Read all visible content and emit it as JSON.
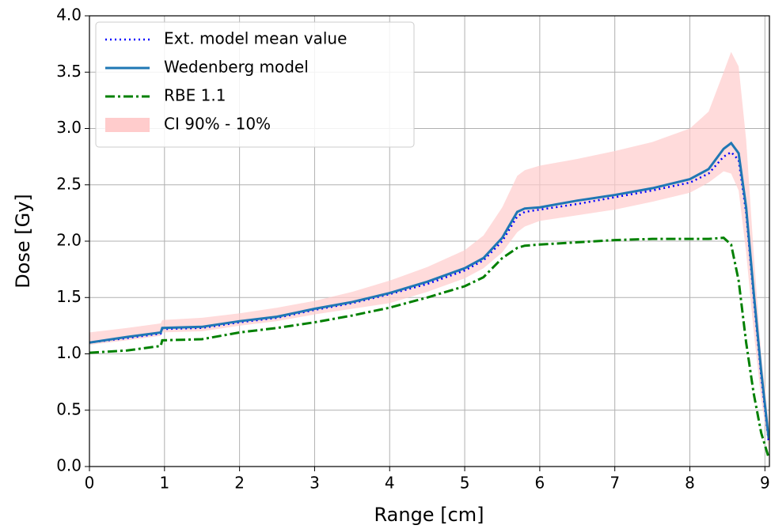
{
  "chart_data": {
    "type": "line",
    "xlabel": "Range [cm]",
    "ylabel": "Dose [Gy]",
    "x": [
      0,
      0.5,
      0.95,
      0.97,
      1.5,
      2,
      2.5,
      3,
      3.5,
      4,
      4.5,
      5,
      5.25,
      5.5,
      5.7,
      5.8,
      6,
      6.5,
      7,
      7.5,
      8,
      8.25,
      8.45,
      8.55,
      8.65,
      8.75,
      8.85,
      8.95,
      9.05
    ],
    "series": [
      {
        "name": "Ext. model mean value",
        "color": "#0000ff",
        "style": "dotted",
        "values": [
          1.1,
          1.14,
          1.18,
          1.22,
          1.23,
          1.28,
          1.32,
          1.39,
          1.45,
          1.53,
          1.62,
          1.74,
          1.83,
          2.0,
          2.22,
          2.26,
          2.28,
          2.33,
          2.39,
          2.45,
          2.52,
          2.6,
          2.75,
          2.79,
          2.72,
          2.25,
          1.5,
          0.8,
          0.22
        ]
      },
      {
        "name": "Wedenberg model",
        "color": "#1f77b4",
        "style": "solid",
        "values": [
          1.1,
          1.15,
          1.19,
          1.23,
          1.24,
          1.29,
          1.33,
          1.4,
          1.46,
          1.54,
          1.64,
          1.76,
          1.85,
          2.03,
          2.26,
          2.29,
          2.3,
          2.36,
          2.41,
          2.47,
          2.55,
          2.64,
          2.82,
          2.87,
          2.78,
          2.3,
          1.55,
          0.85,
          0.25
        ]
      },
      {
        "name": "RBE 1.1",
        "color": "#008000",
        "style": "dashdot",
        "values": [
          1.01,
          1.03,
          1.07,
          1.12,
          1.13,
          1.19,
          1.23,
          1.28,
          1.34,
          1.41,
          1.5,
          1.6,
          1.68,
          1.85,
          1.94,
          1.96,
          1.97,
          1.99,
          2.01,
          2.02,
          2.02,
          2.02,
          2.03,
          1.97,
          1.65,
          1.1,
          0.65,
          0.3,
          0.08
        ]
      },
      {
        "name": "CI 90% - 10%",
        "color": "#ffcccc",
        "style": "band",
        "upper": [
          1.19,
          1.23,
          1.27,
          1.3,
          1.32,
          1.36,
          1.41,
          1.47,
          1.55,
          1.65,
          1.77,
          1.92,
          2.05,
          2.3,
          2.58,
          2.63,
          2.67,
          2.73,
          2.8,
          2.88,
          3.0,
          3.15,
          3.5,
          3.68,
          3.55,
          2.9,
          1.9,
          1.0,
          0.4
        ],
        "lower": [
          1.08,
          1.12,
          1.16,
          1.19,
          1.2,
          1.25,
          1.29,
          1.35,
          1.4,
          1.45,
          1.55,
          1.67,
          1.76,
          1.9,
          2.08,
          2.13,
          2.18,
          2.23,
          2.28,
          2.35,
          2.43,
          2.52,
          2.62,
          2.6,
          2.45,
          1.9,
          1.2,
          0.6,
          0.15
        ]
      }
    ],
    "xlim": [
      0,
      9.06
    ],
    "ylim": [
      0,
      4
    ],
    "xticks": [
      0,
      1,
      2,
      3,
      4,
      5,
      6,
      7,
      8,
      9
    ],
    "yticks": [
      {
        "value": 0,
        "label": "0.0"
      },
      0.5,
      {
        "value": 1,
        "label": "1.0"
      },
      1.5,
      {
        "value": 2,
        "label": "2.0"
      },
      2.5,
      {
        "value": 3,
        "label": "3.0"
      },
      3.5,
      {
        "value": 4,
        "label": "4.0"
      }
    ],
    "grid": true,
    "legend": "upper left"
  }
}
